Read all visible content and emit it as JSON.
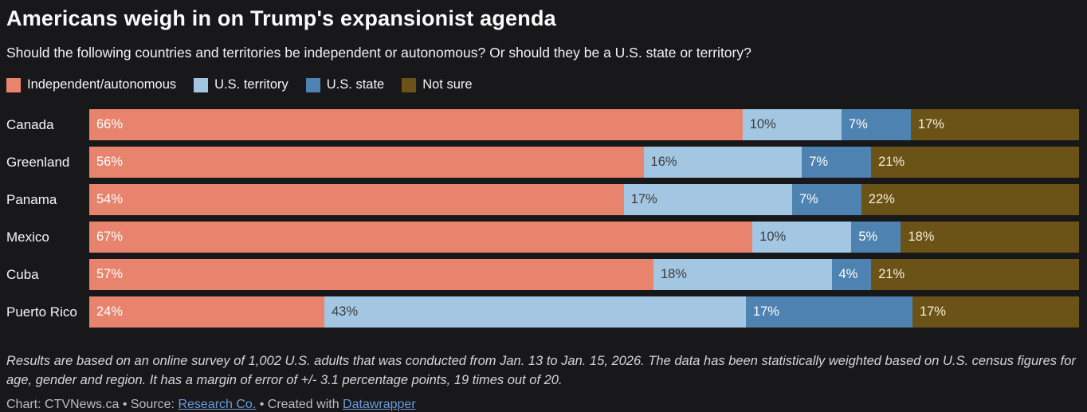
{
  "title": "Americans weigh in on Trump's expansionist agenda",
  "subtitle": "Should the following countries and territories be independent or autonomous? Or should they be a U.S. state or territory?",
  "colors": {
    "background": "#18181a",
    "independent_autonomous": "#e8846d",
    "us_territory": "#a3c7e3",
    "us_state": "#4e82b0",
    "not_sure": "#6b5318",
    "link": "#6b9bd8"
  },
  "legend": [
    {
      "label": "Independent/autonomous",
      "color": "#e8846d"
    },
    {
      "label": "U.S. territory",
      "color": "#a3c7e3"
    },
    {
      "label": "U.S. state",
      "color": "#4e82b0"
    },
    {
      "label": "Not sure",
      "color": "#6b5318"
    }
  ],
  "chart_data": {
    "type": "bar",
    "orientation": "horizontal",
    "stacked": true,
    "unit": "%",
    "xlim": [
      0,
      100
    ],
    "grid": false,
    "legend_position": "top",
    "categories": [
      "Canada",
      "Greenland",
      "Panama",
      "Mexico",
      "Cuba",
      "Puerto Rico"
    ],
    "series": [
      {
        "name": "Independent/autonomous",
        "color": "#e8846d",
        "label_color": "#ffffff",
        "values": [
          66,
          56,
          54,
          67,
          57,
          24
        ]
      },
      {
        "name": "U.S. territory",
        "color": "#a3c7e3",
        "label_color": "#3c3c3c",
        "values": [
          10,
          16,
          17,
          10,
          18,
          43
        ]
      },
      {
        "name": "U.S. state",
        "color": "#4e82b0",
        "label_color": "#ffffff",
        "values": [
          7,
          7,
          7,
          5,
          4,
          17
        ]
      },
      {
        "name": "Not sure",
        "color": "#6b5318",
        "label_color": "#f6efda",
        "values": [
          17,
          21,
          22,
          18,
          21,
          17
        ]
      }
    ]
  },
  "notes": "Results are based on an online survey of 1,002 U.S. adults that was conducted from Jan. 13 to Jan. 15, 2026. The data has been statistically weighted based on U.S. census figures for age, gender and region. It has a margin of error of +/- 3.1 percentage points, 19 times out of 20.",
  "attribution": {
    "chart_prefix": "Chart: CTVNews.ca • Source: ",
    "source_link": "Research Co.",
    "middle": " • Created with ",
    "tool_link": "Datawrapper"
  }
}
